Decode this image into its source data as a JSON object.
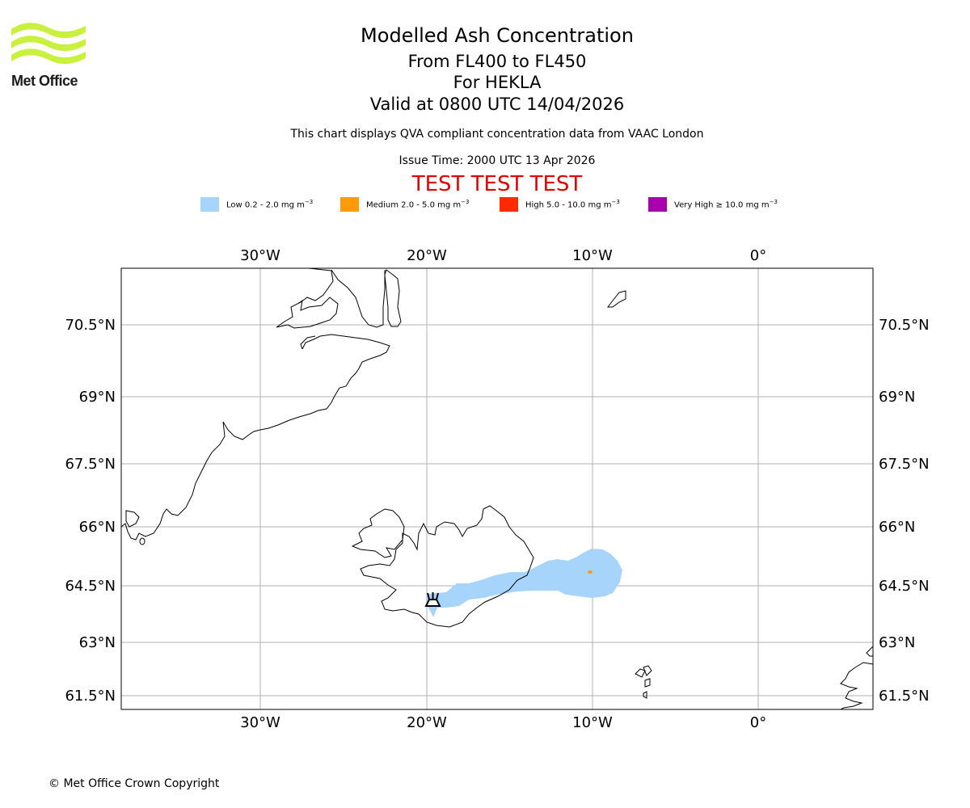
{
  "logo": {
    "name": "Met Office"
  },
  "title": {
    "main": "Modelled Ash Concentration",
    "levels": "From FL400 to FL450",
    "volcano": "For HEKLA",
    "valid": "Valid at 0800 UTC 14/04/2026"
  },
  "description": "This chart displays QVA compliant concentration data from VAAC London",
  "issue_time": "Issue Time: 2000 UTC 13 Apr 2026",
  "test_banner": "TEST TEST TEST",
  "legend": [
    {
      "label": "Low 0.2 - 2.0 mg m",
      "unit_exp": "−3",
      "color": "#a6d4fa"
    },
    {
      "label": "Medium 2.0 - 5.0 mg m",
      "unit_exp": "−3",
      "color": "#ff9a0a"
    },
    {
      "label": "High 5.0 - 10.0 mg m",
      "unit_exp": "−3",
      "color": "#ff2a00"
    },
    {
      "label": "Very High  ≥  10.0 mg m",
      "unit_exp": "−3",
      "color": "#a800ad"
    }
  ],
  "map": {
    "lon_labels": [
      "30°W",
      "20°W",
      "10°W",
      "0°"
    ],
    "lat_labels": [
      "70.5°N",
      "69°N",
      "67.5°N",
      "66°N",
      "64.5°N",
      "63°N",
      "61.5°N"
    ],
    "volcano_marker": "volcano-icon"
  },
  "copyright": "© Met Office Crown Copyright"
}
